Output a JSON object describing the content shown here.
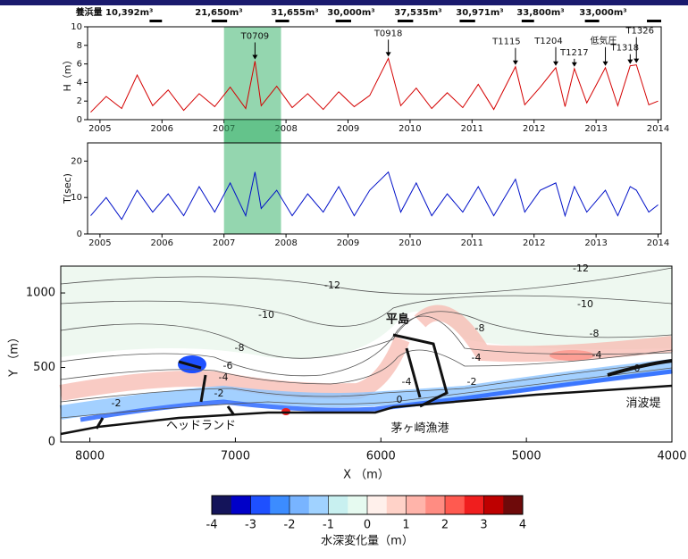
{
  "chart_data": [
    {
      "type": "line",
      "ylabel": "H（m）",
      "color": "#d40000",
      "xlim": [
        2004.8,
        2014.05
      ],
      "xticks": [
        2005,
        2006,
        2007,
        2008,
        2009,
        2010,
        2011,
        2012,
        2013,
        2014
      ],
      "ylim": [
        0,
        10
      ],
      "yticks": [
        0,
        2,
        4,
        6,
        8,
        10
      ],
      "span": [
        2007.0,
        2007.92
      ],
      "span_color": "#3cb46e",
      "supply_labels": [
        "養浜量 10,392m³",
        "21,650m³",
        "31,655m³",
        "30,000m³",
        "37,535m³",
        "30,971m³",
        "33,800m³",
        "33,000m³"
      ],
      "supply_periods": [
        [
          2005.8,
          2006.0
        ],
        [
          2006.8,
          2007.05
        ],
        [
          2007.83,
          2008.05
        ],
        [
          2008.8,
          2009.05
        ],
        [
          2009.8,
          2010.05
        ],
        [
          2010.8,
          2011.05
        ],
        [
          2011.8,
          2012.0
        ],
        [
          2012.82,
          2013.05
        ],
        [
          2013.82,
          2014.05
        ]
      ],
      "annotations": [
        {
          "text": "T0709",
          "x": 2007.5,
          "y": 6.3
        },
        {
          "text": "T0918",
          "x": 2009.65,
          "y": 6.6
        },
        {
          "text": "T1115",
          "x": 2011.7,
          "y": 5.7
        },
        {
          "text": "T1204",
          "x": 2012.35,
          "y": 5.6
        },
        {
          "text": "T1217",
          "x": 2012.65,
          "y": 5.5
        },
        {
          "text": "低気圧",
          "x": 2013.15,
          "y": 5.6
        },
        {
          "text": "T1318",
          "x": 2013.55,
          "y": 5.8
        },
        {
          "text": "T1326",
          "x": 2013.65,
          "y": 5.9
        }
      ],
      "x": [
        2004.85,
        2005.1,
        2005.35,
        2005.6,
        2005.85,
        2006.1,
        2006.35,
        2006.6,
        2006.85,
        2007.1,
        2007.35,
        2007.5,
        2007.6,
        2007.85,
        2008.1,
        2008.35,
        2008.6,
        2008.85,
        2009.1,
        2009.35,
        2009.65,
        2009.85,
        2010.1,
        2010.35,
        2010.6,
        2010.85,
        2011.1,
        2011.35,
        2011.7,
        2011.85,
        2012.1,
        2012.35,
        2012.5,
        2012.65,
        2012.85,
        2013.15,
        2013.35,
        2013.55,
        2013.65,
        2013.85,
        2014.0
      ],
      "values": [
        0.8,
        2.5,
        1.2,
        4.8,
        1.5,
        3.2,
        1.0,
        2.8,
        1.4,
        3.5,
        1.2,
        6.3,
        1.5,
        3.6,
        1.3,
        2.8,
        1.1,
        3.0,
        1.4,
        2.6,
        6.6,
        1.5,
        3.4,
        1.2,
        2.9,
        1.3,
        3.8,
        1.1,
        5.7,
        1.6,
        3.5,
        5.6,
        1.4,
        5.5,
        1.8,
        5.6,
        1.5,
        5.8,
        5.9,
        1.6,
        2.0
      ]
    },
    {
      "type": "line",
      "ylabel": "T(sec)",
      "color": "#0010c8",
      "xlim": [
        2004.8,
        2014.05
      ],
      "xticks": [
        2005,
        2006,
        2007,
        2008,
        2009,
        2010,
        2011,
        2012,
        2013,
        2014
      ],
      "ylim": [
        0,
        25
      ],
      "yticks": [
        0,
        10,
        20
      ],
      "span": [
        2007.0,
        2007.92
      ],
      "span_color": "#3cb46e",
      "x": [
        2004.85,
        2005.1,
        2005.35,
        2005.6,
        2005.85,
        2006.1,
        2006.35,
        2006.6,
        2006.85,
        2007.1,
        2007.35,
        2007.5,
        2007.6,
        2007.85,
        2008.1,
        2008.35,
        2008.6,
        2008.85,
        2009.1,
        2009.35,
        2009.65,
        2009.85,
        2010.1,
        2010.35,
        2010.6,
        2010.85,
        2011.1,
        2011.35,
        2011.7,
        2011.85,
        2012.1,
        2012.35,
        2012.5,
        2012.65,
        2012.85,
        2013.15,
        2013.35,
        2013.55,
        2013.65,
        2013.85,
        2014.0
      ],
      "values": [
        5,
        10,
        4,
        12,
        6,
        11,
        5,
        13,
        6,
        14,
        5,
        17,
        7,
        12,
        5,
        11,
        6,
        13,
        5,
        12,
        17,
        6,
        14,
        5,
        11,
        6,
        13,
        5,
        15,
        6,
        12,
        14,
        5,
        13,
        6,
        12,
        5,
        13,
        12,
        6,
        8
      ]
    }
  ],
  "map": {
    "xlabel": "X （m）",
    "ylabel": "Y （m）",
    "xlim": [
      8200,
      4000
    ],
    "xticks": [
      8000,
      7000,
      6000,
      5000,
      4000
    ],
    "ylim": [
      0,
      1180
    ],
    "yticks": [
      0,
      500,
      1000
    ],
    "contour_labels": [
      "-12",
      "-12",
      "-10",
      "-10",
      "-8",
      "-8",
      "-8",
      "-6",
      "-4",
      "-4",
      "-4",
      "-4",
      "-2",
      "-2",
      "-2",
      "0",
      "0"
    ],
    "places": [
      "平島",
      "ヘッドランド",
      "茅ヶ崎漁港",
      "消波堤"
    ]
  },
  "colorbar": {
    "label": "水深変化量（m）",
    "ticks": [
      -4,
      -3,
      -2,
      -1,
      0,
      1,
      2,
      3,
      4
    ],
    "colors": [
      "#14145a",
      "#0000c8",
      "#1e50ff",
      "#3c8cff",
      "#78b4ff",
      "#a0d2ff",
      "#c8f0f0",
      "#e6faf0",
      "#fff0eb",
      "#ffd2c8",
      "#ffb4aa",
      "#ff8c82",
      "#ff5a50",
      "#f01e1e",
      "#be0000",
      "#6e0a0a"
    ]
  }
}
